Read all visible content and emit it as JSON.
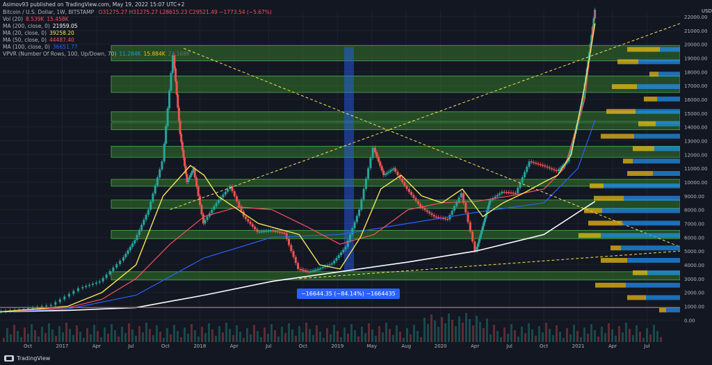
{
  "publisher_line": "Asimov93 published on TradingView.com, May 19, 2022 15:07 UTC+2",
  "header": {
    "symbol": "Bitcoin / U.S. Dollar, 1W, BITSTAMP",
    "ohlc": "O31275.27  H31275.27  L28615.23  C29521.49  −1773.54 (−5.67%)",
    "indicators": [
      {
        "label": "Vol (20)",
        "values": [
          "8.539K",
          "15.458K"
        ],
        "colors": [
          "#f7525f",
          "#f7525f"
        ]
      },
      {
        "label": "MA (200, close, 0)",
        "values": [
          "21959.05"
        ],
        "colors": [
          "#ffffff"
        ]
      },
      {
        "label": "MA (20, close, 0)",
        "values": [
          "39258.20"
        ],
        "colors": [
          "#f7e55a"
        ]
      },
      {
        "label": "MA (50, close, 0)",
        "values": [
          "44487.40"
        ],
        "colors": [
          "#f7525f"
        ]
      },
      {
        "label": "MA (100, close, 0)",
        "values": [
          "36651.77"
        ],
        "colors": [
          "#2962ff"
        ]
      },
      {
        "label": "VPVR (Number Of Rows, 100, Up/Down, 70)",
        "values": [
          "11.284K",
          "15.884K",
          "27.168K"
        ],
        "colors": [
          "#2196f3",
          "#f5c518",
          "#6a6d78"
        ]
      }
    ]
  },
  "measure_label": "−16644.35 (−84.14%) −1664435",
  "watermark": "TradingView",
  "price_axis_unit": "USD",
  "chart_data": {
    "type": "line",
    "title": "Bitcoin / U.S. Dollar, 1W, BITSTAMP",
    "x_ticks": [
      "Oct",
      "2017",
      "Apr",
      "Jul",
      "Oct",
      "2018",
      "Apr",
      "Jul",
      "Oct",
      "2019",
      "May",
      "Aug",
      "2020",
      "Apr",
      "Jul",
      "Oct",
      "2021",
      "Apr",
      "Jul"
    ],
    "y_ticks": [
      0,
      1000,
      2000,
      3000,
      4000,
      5000,
      6000,
      7000,
      8000,
      9000,
      10000,
      11000,
      12000,
      13000,
      14000,
      15000,
      16000,
      17000,
      18000,
      19000,
      20000,
      21000,
      22000
    ],
    "ylim": [
      -1500,
      22500
    ],
    "colors": {
      "up": "#26a69a",
      "down": "#ef5350",
      "ma20": "#f7e55a",
      "ma50": "#f7525f",
      "ma100": "#2962ff",
      "ma200": "#ffffff",
      "zone": "#3a8b2a",
      "vpvr_up": "#2196f3",
      "vpvr_down": "#f5c518"
    },
    "price": {
      "t": [
        0,
        0.04,
        0.08,
        0.12,
        0.15,
        0.18,
        0.2,
        0.22,
        0.24,
        0.255,
        0.265,
        0.275,
        0.285,
        0.3,
        0.32,
        0.34,
        0.36,
        0.38,
        0.4,
        0.42,
        0.44,
        0.455,
        0.47,
        0.49,
        0.51,
        0.53,
        0.55,
        0.565,
        0.58,
        0.6,
        0.62,
        0.64,
        0.66,
        0.68,
        0.7,
        0.71,
        0.72,
        0.74,
        0.76,
        0.78,
        0.8,
        0.82,
        0.835,
        0.845,
        0.855,
        0.865,
        0.875
      ],
      "v": [
        600,
        800,
        1100,
        2300,
        2800,
        4300,
        5800,
        8000,
        11500,
        19200,
        13500,
        10000,
        11000,
        7000,
        8500,
        9700,
        7500,
        6400,
        6500,
        6300,
        3700,
        3500,
        3700,
        4100,
        5300,
        8000,
        12500,
        10500,
        11000,
        9500,
        8200,
        7500,
        7300,
        9200,
        5000,
        6800,
        8600,
        9300,
        9200,
        11500,
        11200,
        10800,
        11500,
        13500,
        15500,
        18800,
        22500
      ]
    },
    "ma20": {
      "t": [
        0,
        0.1,
        0.15,
        0.2,
        0.24,
        0.28,
        0.3,
        0.32,
        0.35,
        0.38,
        0.41,
        0.44,
        0.47,
        0.5,
        0.53,
        0.56,
        0.59,
        0.62,
        0.65,
        0.68,
        0.71,
        0.74,
        0.77,
        0.8,
        0.82,
        0.84,
        0.86,
        0.875
      ],
      "v": [
        600,
        1000,
        2000,
        4000,
        9000,
        11200,
        10500,
        9000,
        8000,
        7000,
        6600,
        6200,
        4000,
        3700,
        6000,
        9500,
        10500,
        9000,
        8500,
        9500,
        7500,
        8500,
        9200,
        10000,
        10500,
        12000,
        17000,
        21500
      ]
    },
    "ma50": {
      "t": [
        0,
        0.1,
        0.15,
        0.2,
        0.25,
        0.3,
        0.35,
        0.4,
        0.45,
        0.5,
        0.55,
        0.6,
        0.65,
        0.7,
        0.75,
        0.8,
        0.83,
        0.86,
        0.875
      ],
      "v": [
        600,
        900,
        1500,
        3000,
        5500,
        7500,
        8200,
        8000,
        6800,
        5500,
        6200,
        8000,
        8500,
        8600,
        9000,
        9500,
        11000,
        16000,
        22500
      ]
    },
    "ma100": {
      "t": [
        0,
        0.1,
        0.2,
        0.3,
        0.4,
        0.5,
        0.6,
        0.7,
        0.8,
        0.85,
        0.875
      ],
      "v": [
        600,
        800,
        1800,
        4500,
        6000,
        6200,
        7000,
        7800,
        8500,
        11000,
        14500
      ]
    },
    "ma200": {
      "t": [
        0,
        0.1,
        0.2,
        0.3,
        0.4,
        0.5,
        0.6,
        0.7,
        0.8,
        0.85,
        0.875
      ],
      "v": [
        600,
        700,
        900,
        1800,
        2800,
        3500,
        4200,
        5000,
        6200,
        7800,
        8600
      ]
    },
    "zones": [
      {
        "from": 2900,
        "to": 3500
      },
      {
        "from": 5900,
        "to": 6500
      },
      {
        "from": 8100,
        "to": 8700
      },
      {
        "from": 9700,
        "to": 10200
      },
      {
        "from": 11800,
        "to": 12600
      },
      {
        "from": 13800,
        "to": 14300
      },
      {
        "from": 14400,
        "to": 15100
      },
      {
        "from": 16500,
        "to": 17700
      },
      {
        "from": 18800,
        "to": 19900
      }
    ],
    "annotations": [
      {
        "kind": "measure_range",
        "t_from": 0.455,
        "t_to": 0.47,
        "from": 3500,
        "to": 19800
      }
    ]
  }
}
